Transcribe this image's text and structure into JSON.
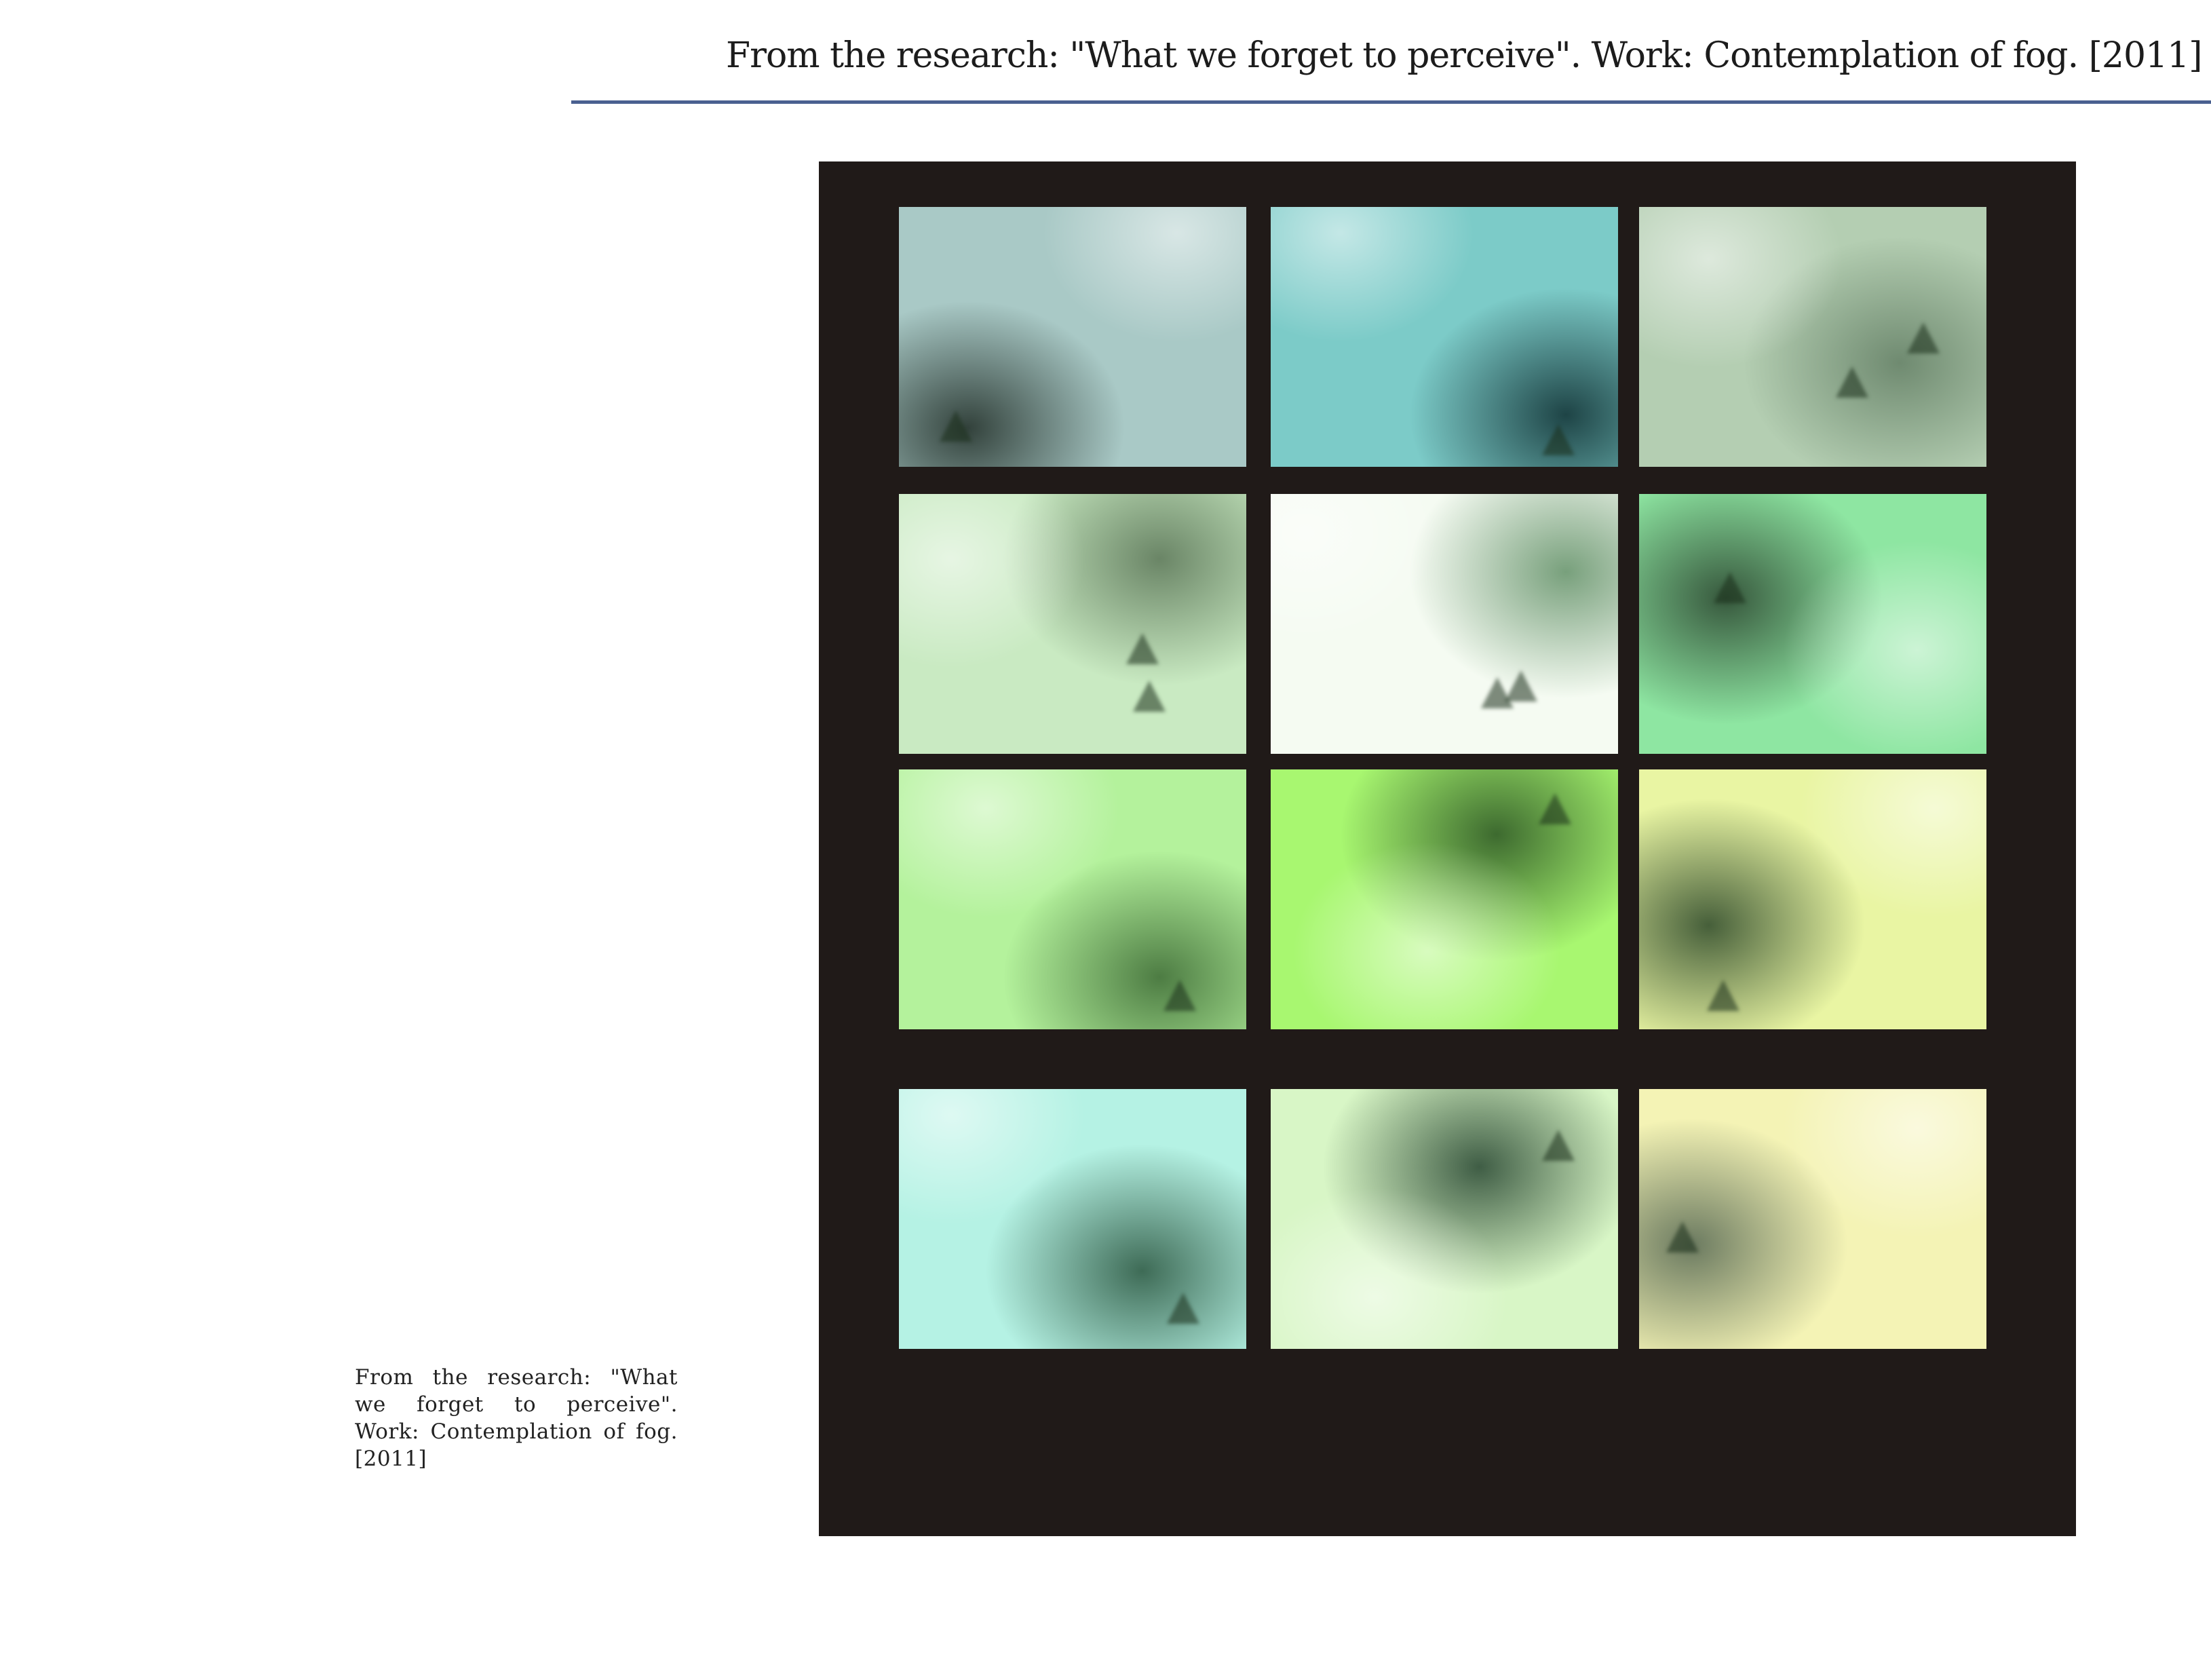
{
  "header": {
    "title": "From the research: \"What we forget to perceive\". Work: Contemplation of fog. [2011]"
  },
  "caption": {
    "text": "From the research: \"What we forget to perceive\". Work: Contemplation of fog. [2011]"
  },
  "grid": {
    "rows": 4,
    "columns": 3,
    "frames": [
      {
        "name": "fog-photo-r1c1",
        "tint": "#a9c9c6",
        "dark": "#33423c"
      },
      {
        "name": "fog-photo-r1c2",
        "tint": "#7ccbc8",
        "dark": "#1e4446"
      },
      {
        "name": "fog-photo-r1c3",
        "tint": "#b4ceb2",
        "dark": "#6f8a70"
      },
      {
        "name": "fog-photo-r2c1",
        "tint": "#c9eac2",
        "dark": "#6a8566"
      },
      {
        "name": "fog-photo-r2c2",
        "tint": "#f5fbf2",
        "dark": "#78a07c"
      },
      {
        "name": "fog-photo-r2c3",
        "tint": "#8ee6a2",
        "dark": "#37583d"
      },
      {
        "name": "fog-photo-r3c1",
        "tint": "#b4f29c",
        "dark": "#4d7c43"
      },
      {
        "name": "fog-photo-r3c2",
        "tint": "#a8f770",
        "dark": "#3d6a2f"
      },
      {
        "name": "fog-photo-r3c3",
        "tint": "#e9f5a3",
        "dark": "#465f3a"
      },
      {
        "name": "fog-photo-r4c1",
        "tint": "#b5f2e4",
        "dark": "#3e6b56"
      },
      {
        "name": "fog-photo-r4c2",
        "tint": "#d8f6c6",
        "dark": "#3f5d45"
      },
      {
        "name": "fog-photo-r4c3",
        "tint": "#f4f3b5",
        "dark": "#6b7a60"
      }
    ]
  },
  "colors": {
    "board": "#201a18",
    "rule": "#4a6090"
  }
}
